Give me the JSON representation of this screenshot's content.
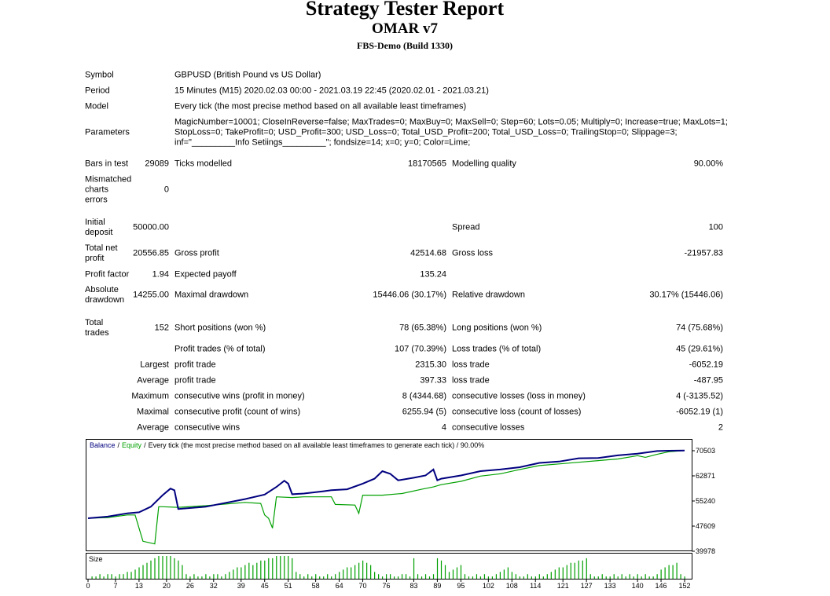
{
  "report": {
    "title": "Strategy Tester Report",
    "expert": "OMAR v7",
    "server": "FBS-Demo (Build 1330)",
    "rows": [
      [
        "Symbol",
        "GBPUSD (British Pound vs US Dollar)"
      ],
      [
        "Period",
        "15 Minutes (M15) 2020.02.03 00:00 - 2021.03.19 22:45 (2020.02.01 - 2021.03.21)"
      ],
      [
        "Model",
        "Every tick (the most precise method based on all available least timeframes)"
      ],
      [
        "Parameters",
        [
          "MagicNumber=10001; CloseInReverse=false; MaxTrades=0; MaxBuy=0; MaxSell=0; Step=60; Lots=0.05; Multiply=0; Increase=true; MaxLots=1;",
          "StopLoss=0; TakeProfit=0; USD_Profit=300; USD_Loss=0; Total_USD_Profit=200; Total_USD_Loss=0; TrailingStop=0; Slippage=3;",
          "inf=\"_________Info Setiings_________\"; fondsize=14; x=0; y=0; Color=Lime;"
        ]
      ],
      [
        "Bars in test",
        "29089",
        "Ticks modelled",
        "18170565",
        "Modelling quality",
        "90.00%"
      ],
      [
        "Mismatched charts errors",
        "0",
        null,
        null,
        null,
        null
      ],
      [
        "Initial deposit",
        "50000.00",
        null,
        null,
        "Spread",
        "100"
      ],
      [
        "Total net profit",
        "20556.85",
        "Gross profit",
        "42514.68",
        "Gross loss",
        "-21957.83"
      ],
      [
        "Profit factor",
        "1.94",
        "Expected payoff",
        "135.24",
        null,
        null
      ],
      [
        "Absolute drawdown",
        "14255.00",
        "Maximal drawdown",
        "15446.06 (30.17%)",
        "Relative drawdown",
        "30.17% (15446.06)"
      ],
      [
        "Total trades",
        "152",
        "Short positions (won %)",
        "78 (65.38%)",
        "Long positions (won %)",
        "74 (75.68%)"
      ],
      [
        null,
        null,
        "Profit trades (% of total)",
        "107 (70.39%)",
        "Loss trades (% of total)",
        "45 (29.61%)"
      ],
      [
        null,
        "Largest",
        "profit trade",
        "2315.30",
        "loss trade",
        "-6052.19"
      ],
      [
        null,
        "Average",
        "profit trade",
        "397.33",
        "loss trade",
        "-487.95"
      ],
      [
        null,
        "Maximum",
        "consecutive wins (profit in money)",
        "8 (4344.68)",
        "consecutive losses (loss in money)",
        "4 (-3135.52)"
      ],
      [
        null,
        "Maximal",
        "consecutive profit (count of wins)",
        "6255.94 (5)",
        "consecutive loss (count of losses)",
        "-6052.19 (1)"
      ],
      [
        null,
        "Average",
        "consecutive wins",
        "4",
        "consecutive losses",
        "2"
      ]
    ]
  },
  "chart_data": {
    "type": "line",
    "legend_separator": "/",
    "legend_note": "Every tick (the most precise method based on all available least timeframes to generate each tick) / 90.00%",
    "series": [
      {
        "name": "Balance",
        "color": "#00007f",
        "x": [
          0,
          5,
          10,
          13,
          16,
          19,
          21,
          22,
          23,
          30,
          40,
          45,
          48,
          50,
          51,
          52,
          55,
          60,
          62,
          66,
          70,
          73,
          75,
          77,
          79,
          83,
          86,
          88,
          89,
          90,
          95,
          100,
          105,
          110,
          115,
          120,
          125,
          130,
          135,
          140,
          145,
          148,
          152
        ],
        "values": [
          50000,
          50500,
          51500,
          51800,
          53500,
          57000,
          59000,
          58500,
          52800,
          53500,
          55800,
          57200,
          59500,
          61400,
          60500,
          57300,
          57500,
          58200,
          58500,
          58800,
          60500,
          62000,
          64300,
          63500,
          61500,
          62300,
          63000,
          64800,
          61500,
          62000,
          63000,
          64300,
          64800,
          65500,
          66800,
          67200,
          68200,
          68300,
          69100,
          69600,
          70400,
          70500,
          70556
        ]
      },
      {
        "name": "Equity",
        "color": "#00a000",
        "x": [
          0,
          5,
          10,
          12,
          13,
          14,
          17,
          18,
          19,
          23,
          30,
          40,
          44,
          45,
          46,
          47,
          48,
          52,
          55,
          62,
          63,
          68,
          69,
          70,
          75,
          80,
          85,
          88,
          90,
          95,
          100,
          105,
          110,
          115,
          120,
          125,
          130,
          135,
          140,
          142,
          145,
          148,
          152
        ],
        "values": [
          50000,
          50200,
          51000,
          51000,
          47000,
          43000,
          42200,
          53500,
          53500,
          53300,
          53800,
          54800,
          54500,
          51000,
          50000,
          47000,
          56500,
          56300,
          56500,
          56500,
          54200,
          54000,
          51500,
          57000,
          57000,
          57500,
          58800,
          59500,
          60200,
          61200,
          62800,
          63500,
          64800,
          66000,
          66500,
          67000,
          67500,
          68000,
          69000,
          68500,
          69400,
          70200,
          70556
        ]
      }
    ],
    "xlim": [
      0,
      152
    ],
    "xticks": [
      0,
      7,
      13,
      20,
      26,
      32,
      39,
      45,
      51,
      58,
      64,
      70,
      76,
      83,
      89,
      95,
      102,
      108,
      114,
      121,
      127,
      133,
      140,
      146,
      152
    ],
    "ylim": [
      39978,
      73600
    ],
    "yticks": [
      70503,
      62871,
      55240,
      47609,
      39978
    ],
    "size": {
      "label": "Size",
      "color": "#00a000",
      "ylim": [
        0,
        10
      ],
      "x": [
        1,
        2,
        3,
        4,
        5,
        6,
        7,
        8,
        9,
        10,
        11,
        12,
        13,
        14,
        15,
        16,
        17,
        18,
        19,
        20,
        21,
        22,
        23,
        24,
        25,
        26,
        27,
        28,
        29,
        30,
        31,
        32,
        33,
        34,
        35,
        36,
        37,
        38,
        39,
        40,
        41,
        42,
        43,
        44,
        45,
        46,
        47,
        48,
        49,
        50,
        51,
        52,
        53,
        54,
        55,
        56,
        57,
        58,
        59,
        60,
        61,
        62,
        63,
        64,
        65,
        66,
        67,
        68,
        69,
        70,
        71,
        72,
        73,
        74,
        75,
        76,
        77,
        78,
        79,
        80,
        81,
        82,
        83,
        84,
        85,
        86,
        87,
        88,
        89,
        90,
        91,
        92,
        93,
        94,
        95,
        96,
        97,
        98,
        99,
        100,
        101,
        102,
        103,
        104,
        105,
        106,
        107,
        108,
        109,
        110,
        111,
        112,
        113,
        114,
        115,
        116,
        117,
        118,
        119,
        120,
        121,
        122,
        123,
        124,
        125,
        126,
        127,
        128,
        129,
        130,
        131,
        132,
        133,
        134,
        135,
        136,
        137,
        138,
        139,
        140,
        141,
        142,
        143,
        144,
        145,
        146,
        147,
        148,
        149,
        150,
        151,
        152
      ],
      "values": [
        1,
        1,
        2,
        1,
        2,
        2,
        1,
        2,
        2,
        3,
        3,
        4,
        5,
        6,
        7,
        8,
        9,
        10,
        10,
        10,
        10,
        9,
        8,
        6,
        2,
        1,
        2,
        1,
        1,
        2,
        1,
        2,
        2,
        1,
        2,
        3,
        4,
        5,
        5,
        6,
        7,
        6,
        7,
        8,
        8,
        9,
        9,
        10,
        10,
        10,
        10,
        9,
        3,
        2,
        1,
        2,
        1,
        2,
        1,
        1,
        2,
        1,
        2,
        3,
        4,
        5,
        5,
        6,
        7,
        8,
        7,
        6,
        3,
        2,
        1,
        2,
        2,
        1,
        1,
        2,
        2,
        1,
        9,
        2,
        1,
        2,
        1,
        2,
        9,
        8,
        6,
        3,
        4,
        5,
        6,
        2,
        1,
        1,
        2,
        1,
        2,
        1,
        1,
        2,
        3,
        4,
        5,
        3,
        2,
        1,
        1,
        2,
        1,
        1,
        2,
        1,
        2,
        3,
        4,
        5,
        5,
        6,
        7,
        7,
        8,
        8,
        9,
        2,
        1,
        1,
        2,
        1,
        1,
        2,
        1,
        2,
        1,
        2,
        1,
        2,
        1,
        2,
        1,
        1,
        2,
        4,
        5,
        6,
        6,
        7,
        2,
        1
      ]
    }
  }
}
